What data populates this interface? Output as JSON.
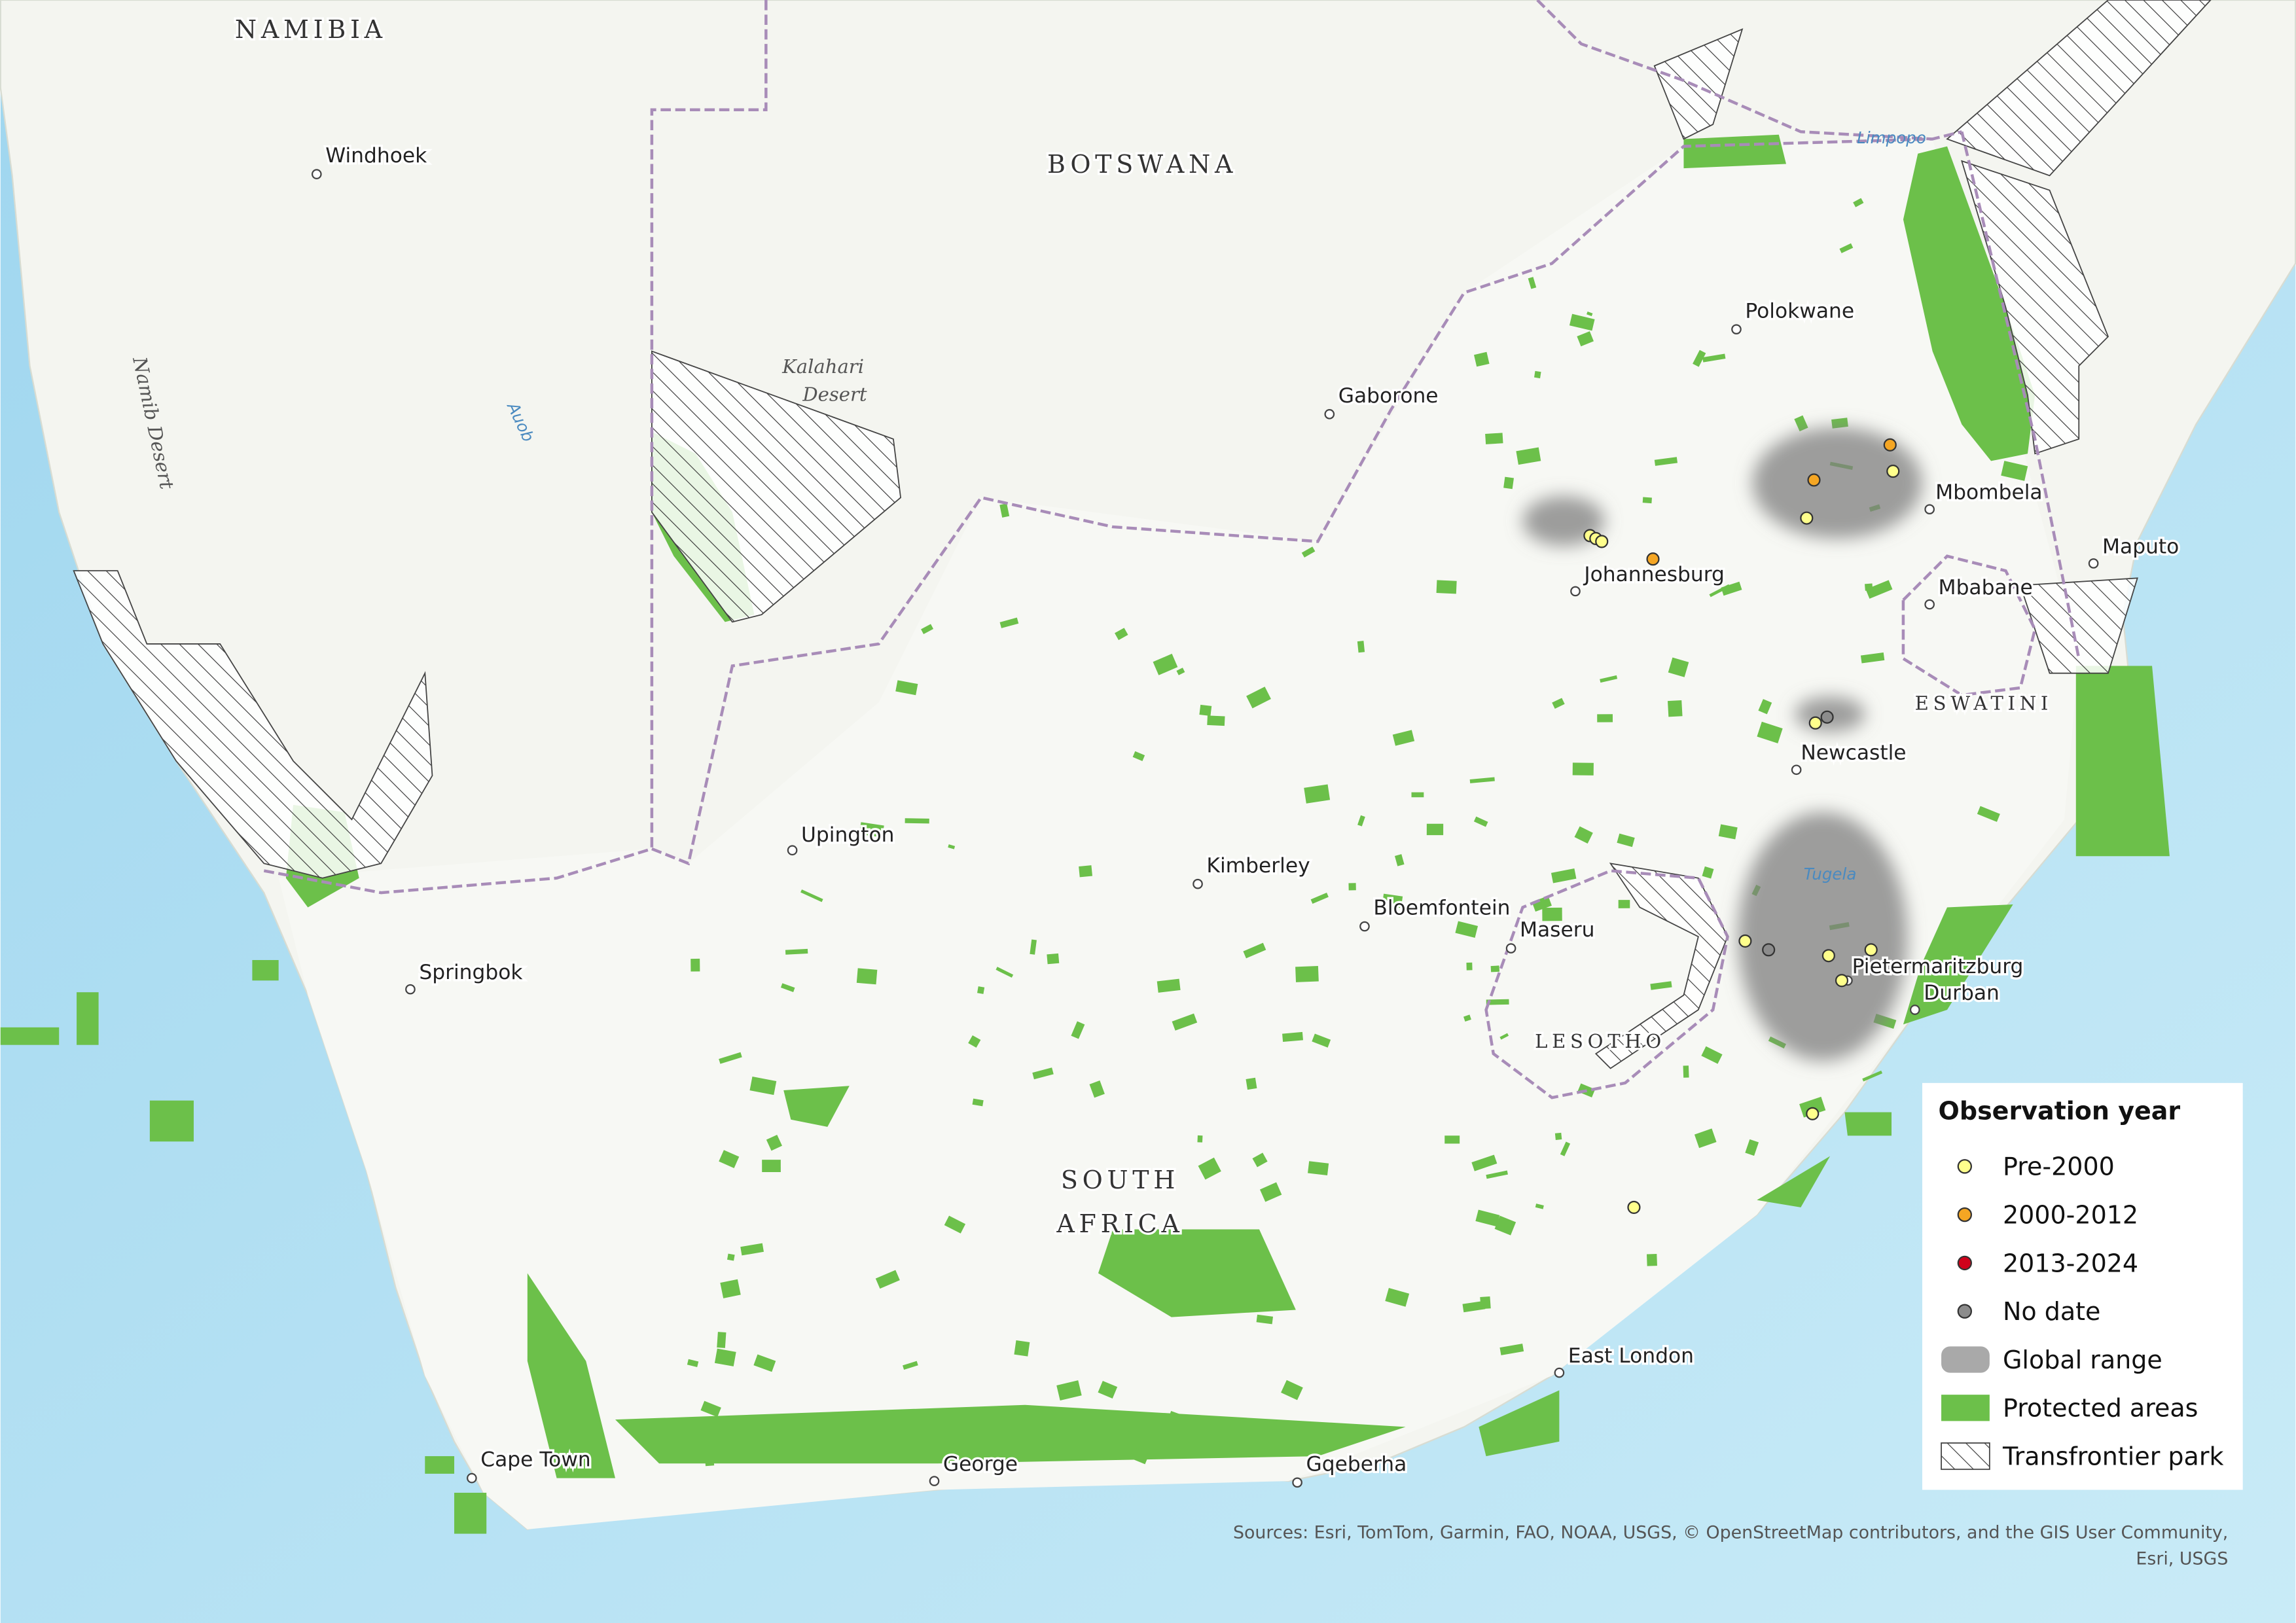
{
  "map": {
    "countries": {
      "namibia": "NAMIBIA",
      "botswana": "BOTSWANA",
      "south_africa": [
        "SOUTH",
        "AFRICA"
      ],
      "lesotho": "LESOTHO",
      "eswatini": "ESWATINI"
    },
    "features": {
      "kalahari": [
        "Kalahari",
        "Desert"
      ],
      "namib": "Namib Desert",
      "auob": "Auob",
      "limpopo": "Limpopo",
      "tugela": "Tugela"
    },
    "cities": [
      "Windhoek",
      "Gaborone",
      "Polokwane",
      "Mbombela",
      "Maputo",
      "Mbabane",
      "Johannesburg",
      "Newcastle",
      "Upington",
      "Kimberley",
      "Bloemfontein",
      "Maseru",
      "Pietermaritzburg",
      "Durban",
      "Springbok",
      "East London",
      "Cape Town",
      "George",
      "Gqeberha"
    ],
    "legend": {
      "title": "Observation year",
      "items": [
        {
          "label": "Pre-2000",
          "color": "#ffff8c"
        },
        {
          "label": "2000-2012",
          "color": "#f5a623"
        },
        {
          "label": "2013-2024",
          "color": "#d0021b"
        },
        {
          "label": "No date",
          "color": "#8c8c8c"
        },
        {
          "label": "Global range",
          "color": "#8c8c8c"
        },
        {
          "label": "Protected areas",
          "color": "#6cc04a"
        },
        {
          "label": "Transfrontier park",
          "color": "#ffffff"
        }
      ]
    },
    "sources": [
      "Sources: Esri, TomTom, Garmin, FAO, NOAA, USGS, © OpenStreetMap contributors, and the GIS User Community,",
      "Esri, USGS"
    ]
  }
}
